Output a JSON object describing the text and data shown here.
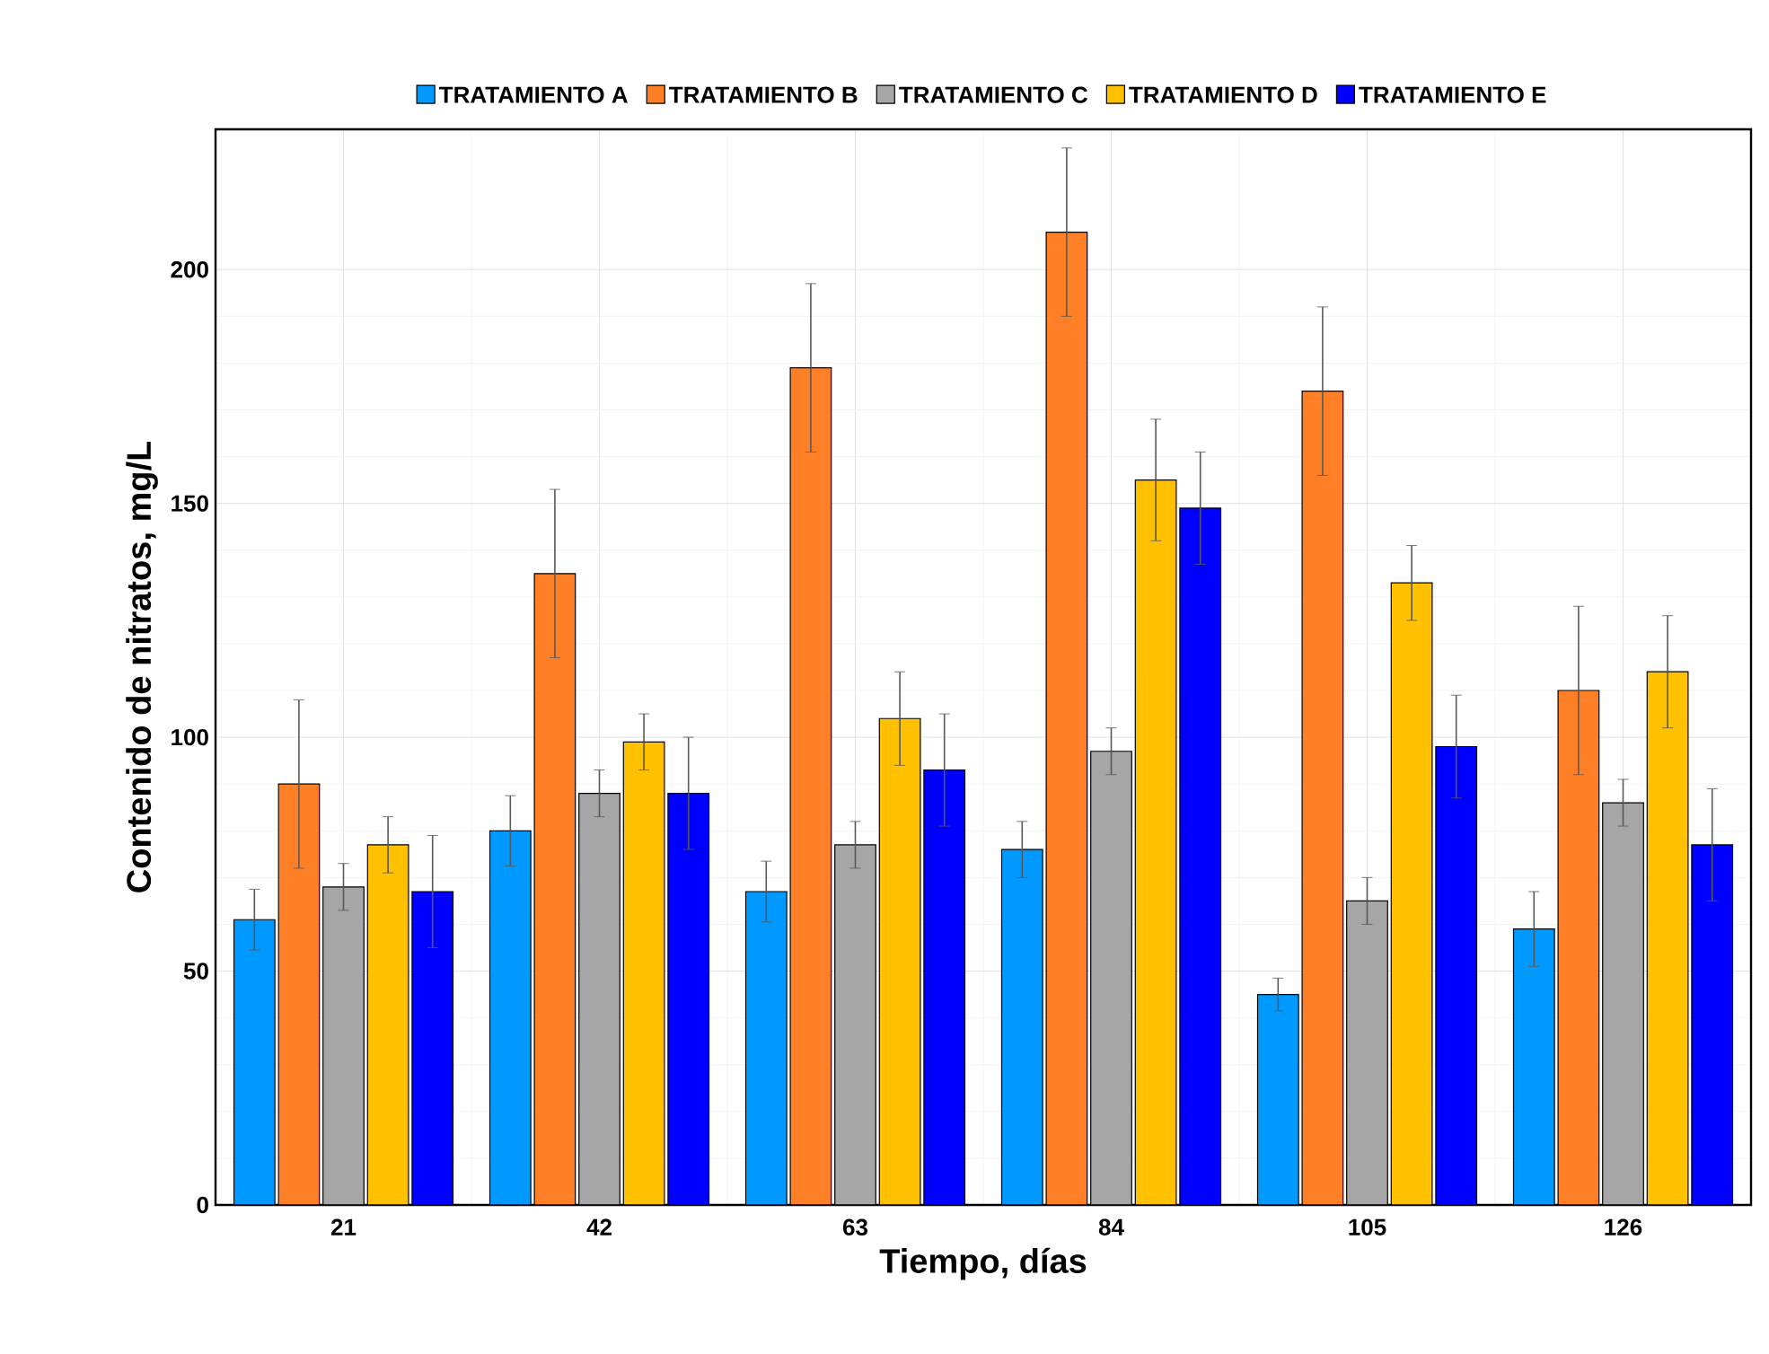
{
  "chart_data": {
    "type": "bar",
    "xlabel": "Tiempo, días",
    "ylabel": "Contenido de nitratos, mg/L",
    "categories": [
      "21",
      "42",
      "63",
      "84",
      "105",
      "126"
    ],
    "series": [
      {
        "name": "TRATAMIENTO A",
        "color": "#0099ff",
        "values": [
          61,
          80,
          67,
          76,
          45,
          59
        ],
        "errors": [
          6.5,
          7.5,
          6.5,
          6,
          3.5,
          8
        ]
      },
      {
        "name": "TRATAMIENTO B",
        "color": "#ff7f27",
        "values": [
          90,
          135,
          179,
          208,
          174,
          110
        ],
        "errors": [
          18,
          18,
          18,
          18,
          18,
          18
        ]
      },
      {
        "name": "TRATAMIENTO C",
        "color": "#a6a6a6",
        "values": [
          68,
          88,
          77,
          97,
          65,
          86
        ],
        "errors": [
          5,
          5,
          5,
          5,
          5,
          5
        ]
      },
      {
        "name": "TRATAMIENTO D",
        "color": "#ffc000",
        "values": [
          77,
          99,
          104,
          155,
          133,
          114
        ],
        "errors": [
          6,
          6,
          10,
          13,
          8,
          12
        ]
      },
      {
        "name": "TRATAMIENTO E",
        "color": "#0000ff",
        "values": [
          67,
          88,
          93,
          149,
          98,
          77
        ],
        "errors": [
          12,
          12,
          12,
          12,
          11,
          12
        ]
      }
    ],
    "ylim": [
      0,
      230
    ],
    "yticks": [
      0,
      50,
      100,
      150,
      200
    ],
    "grid": true,
    "legend": "top"
  }
}
